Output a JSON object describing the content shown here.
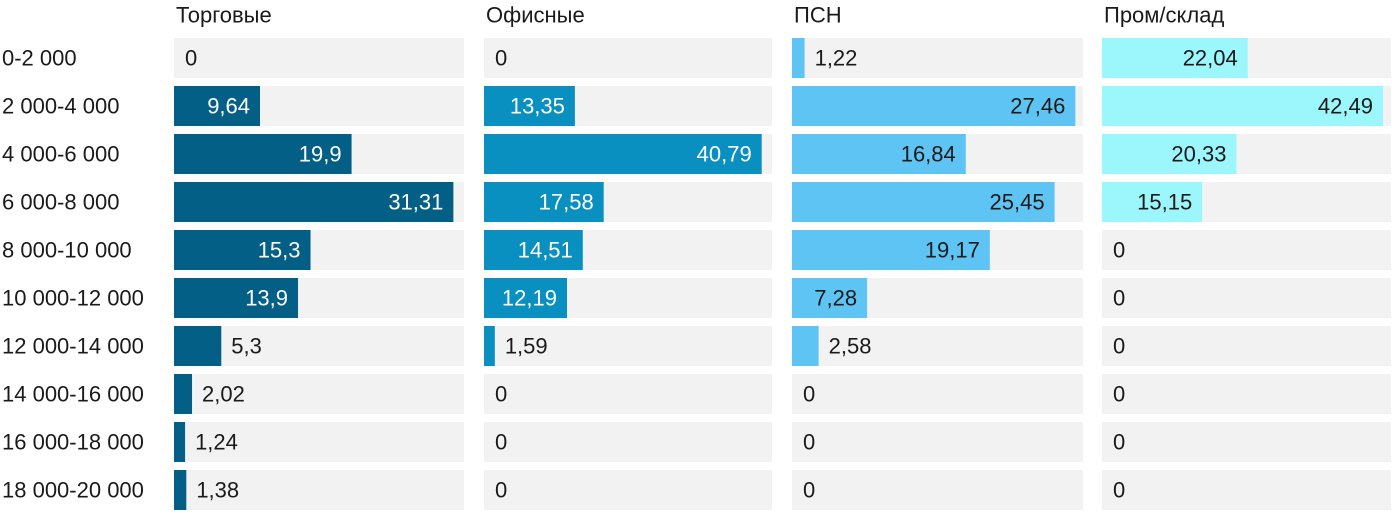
{
  "chart_data": {
    "type": "bar",
    "orientation": "horizontal",
    "layout": "small-multiples",
    "categories": [
      "0-2 000",
      "2 000-4 000",
      "4 000-6 000",
      "6 000-8 000",
      "8 000-10 000",
      "10 000-12 000",
      "12 000-14 000",
      "14 000-16 000",
      "16 000-18 000",
      "18 000-20 000"
    ],
    "panels": [
      {
        "name": "Торговые",
        "color": "#045f87",
        "xlim": [
          0,
          32.5
        ],
        "values": [
          0,
          9.64,
          19.9,
          31.31,
          15.3,
          13.9,
          5.3,
          2.02,
          1.24,
          1.38
        ],
        "labels": [
          "0",
          "9,64",
          "19,9",
          "31,31",
          "15,3",
          "13,9",
          "5,3",
          "2,02",
          "1,24",
          "1,38"
        ]
      },
      {
        "name": "Офисные",
        "color": "#0990c0",
        "xlim": [
          0,
          42.3
        ],
        "values": [
          0,
          13.35,
          40.79,
          17.58,
          14.51,
          12.19,
          1.59,
          0,
          0,
          0
        ],
        "labels": [
          "0",
          "13,35",
          "40,79",
          "17,58",
          "14,51",
          "12,19",
          "1,59",
          "0",
          "0",
          "0"
        ]
      },
      {
        "name": "ПСН",
        "color": "#5ec4f3",
        "xlim": [
          0,
          28.2
        ],
        "values": [
          1.22,
          27.46,
          16.84,
          25.45,
          19.17,
          7.28,
          2.58,
          0,
          0,
          0
        ],
        "labels": [
          "1,22",
          "27,46",
          "16,84",
          "25,45",
          "19,17",
          "7,28",
          "2,58",
          "0",
          "0",
          "0"
        ]
      },
      {
        "name": "Пром/склад",
        "color": "#9bf7fc",
        "xlim": [
          0,
          43.7
        ],
        "values": [
          22.04,
          42.49,
          20.33,
          15.15,
          0,
          0,
          0,
          0,
          0,
          0
        ],
        "labels": [
          "22,04",
          "42,49",
          "20,33",
          "15,15",
          "0",
          "0",
          "0",
          "0",
          "0",
          "0"
        ]
      }
    ],
    "track_color": "#f2f2f2",
    "label_inside_color": "#ffffff",
    "label_outside_color": "#1a1a1a"
  }
}
